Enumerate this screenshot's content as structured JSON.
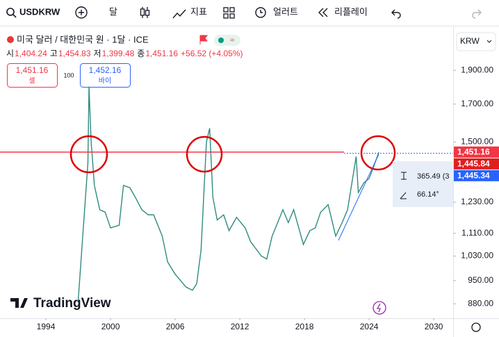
{
  "toolbar": {
    "symbol": "USDKRW",
    "interval": "달",
    "indicators": "지표",
    "alert": "얼러트",
    "replay": "리플레이"
  },
  "legend": {
    "title": "미국 달러 / 대한민국 원 · 1달 · ICE",
    "ohlc": [
      [
        "시",
        "1,404.24"
      ],
      [
        "고",
        "1,454.83"
      ],
      [
        "저",
        "1,399.48"
      ],
      [
        "종",
        "1,451.16"
      ]
    ],
    "change": "+56.52 (+4.05%)",
    "sell": {
      "price": "1,451.16",
      "label": "셀"
    },
    "spread": "100",
    "buy": {
      "price": "1,452.16",
      "label": "바이"
    }
  },
  "currency": "KRW",
  "measure": {
    "distance": "365.49 (3",
    "angle": "66.14°"
  },
  "watermark": "TradingView",
  "chart_data": {
    "type": "line",
    "log_scale": true,
    "color": "#2e8b7f",
    "x": [
      1997.0,
      1997.9,
      1998.0,
      1998.2,
      1998.5,
      1999.0,
      1999.5,
      2000.0,
      2000.8,
      2001.2,
      2001.8,
      2002.3,
      2002.9,
      2003.5,
      2004.0,
      2004.8,
      2005.3,
      2006.0,
      2006.5,
      2007.0,
      2007.6,
      2008.0,
      2008.4,
      2008.9,
      2009.2,
      2009.5,
      2009.9,
      2010.5,
      2011.0,
      2011.7,
      2012.5,
      2013.0,
      2014.0,
      2014.5,
      2015.0,
      2016.0,
      2016.5,
      2017.0,
      2017.9,
      2018.5,
      2019.0,
      2019.5,
      2020.2,
      2020.9,
      2021.5,
      2022.0,
      2022.8,
      2023.0,
      2023.5,
      2024.0,
      2024.4,
      2024.9
    ],
    "values": [
      890,
      1400,
      1800,
      1500,
      1300,
      1200,
      1190,
      1130,
      1140,
      1300,
      1290,
      1250,
      1200,
      1180,
      1180,
      1100,
      1010,
      970,
      950,
      930,
      920,
      940,
      1050,
      1500,
      1570,
      1250,
      1160,
      1180,
      1120,
      1170,
      1130,
      1080,
      1030,
      1020,
      1100,
      1200,
      1150,
      1200,
      1070,
      1120,
      1130,
      1190,
      1220,
      1100,
      1150,
      1200,
      1430,
      1270,
      1310,
      1330,
      1380,
      1450
    ],
    "xlim": [
      1989.74,
      2031.8
    ],
    "xticks": [
      1994,
      2000,
      2006,
      2012,
      2018,
      2024,
      2030
    ],
    "ylim": [
      839,
      2186
    ],
    "yticks": [
      {
        "value": 1900,
        "label": "1,900.00"
      },
      {
        "value": 1700,
        "label": "1,700.00"
      },
      {
        "value": 1500,
        "label": "1,500.00"
      },
      {
        "value": 1230,
        "label": "1,230.00"
      },
      {
        "value": 1110,
        "label": "1,110.00"
      },
      {
        "value": 1030,
        "label": "1,030.00"
      },
      {
        "value": 950,
        "label": "950.00"
      },
      {
        "value": 880,
        "label": "880.00"
      }
    ],
    "price_labels": [
      {
        "value": 1451.16,
        "label": "1,451.16",
        "color": "#f23645"
      },
      {
        "value": 1445.84,
        "label": "1,445.84",
        "color": "#e01e1e"
      },
      {
        "value": 1445.34,
        "label": "1,445.34",
        "color": "#2962ff"
      }
    ]
  }
}
